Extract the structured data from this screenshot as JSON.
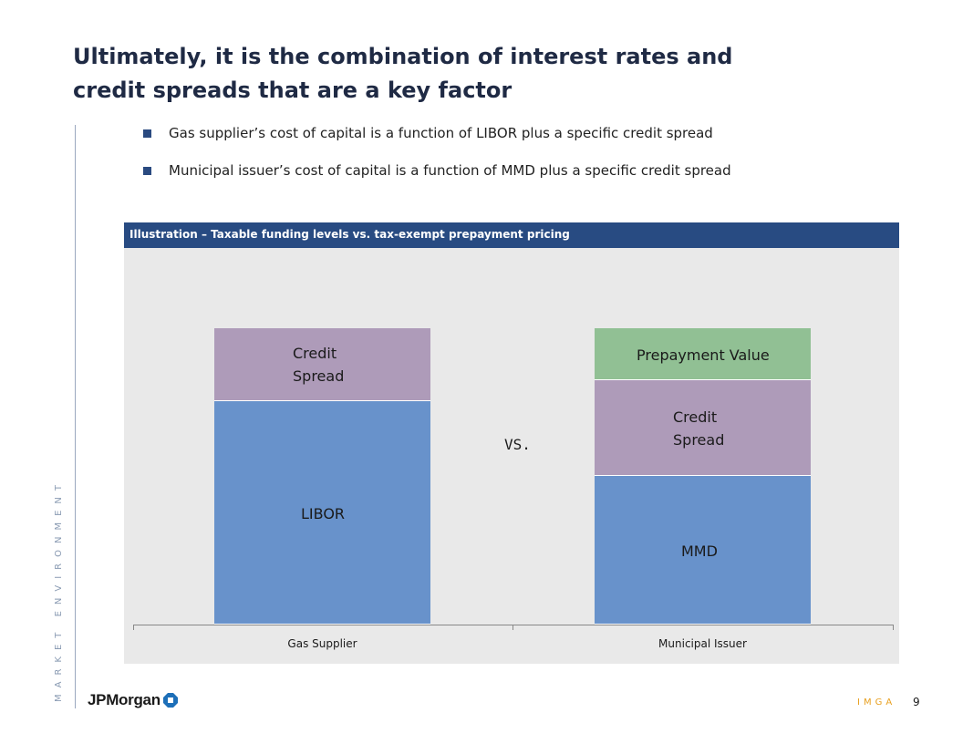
{
  "title": {
    "line1": "Ultimately, it is the combination of interest rates and",
    "line2": "credit spreads that are a key factor"
  },
  "section_label": "MARKET ENVIRONMENT",
  "bullets": [
    "Gas supplier’s cost of capital is a function of LIBOR plus a specific credit spread",
    "Municipal issuer’s cost of capital is a function of MMD plus a specific credit spread"
  ],
  "panel_title": "Illustration – Taxable funding levels vs. tax-exempt prepayment pricing",
  "vs_label": "VS.",
  "colors": {
    "rate": "#6892cb",
    "credit_spread": "#ae9bb9",
    "prepayment": "#91c094",
    "header": "#284b82",
    "panel_bg": "#e9e9e9"
  },
  "chart_data": {
    "type": "bar",
    "stacked": true,
    "categories": [
      "Gas Supplier",
      "Municipal Issuer"
    ],
    "series": [
      {
        "key": "base",
        "labels": [
          "LIBOR",
          "MMD"
        ],
        "values": [
          245,
          163
        ]
      },
      {
        "key": "credit_spread",
        "labels": [
          "Credit Spread",
          "Credit Spread"
        ],
        "values": [
          80,
          105
        ]
      },
      {
        "key": "prepayment",
        "labels": [
          "",
          "Prepayment Value"
        ],
        "values": [
          0,
          57
        ]
      }
    ],
    "ylim": [
      0,
      330
    ],
    "grid": false,
    "legend": "none"
  },
  "footer": {
    "logo_text": "JPMorgan",
    "event": "IMGA",
    "page": "9"
  }
}
